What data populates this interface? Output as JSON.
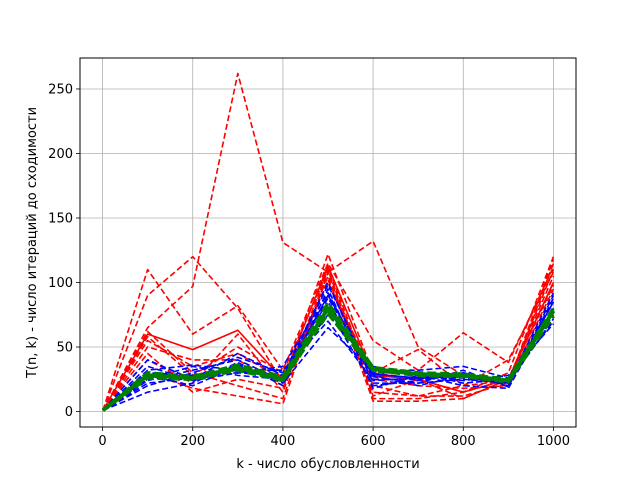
{
  "chart_data": {
    "type": "line",
    "title": "",
    "xlabel": "k - число обусловленности",
    "ylabel": "T(n, k) - число итераций до сходимости",
    "xlim": [
      -50,
      1050
    ],
    "ylim": [
      -12,
      274
    ],
    "xticks": [
      0,
      200,
      400,
      600,
      800,
      1000
    ],
    "yticks": [
      0,
      50,
      100,
      150,
      200,
      250
    ],
    "grid": true,
    "legend": "none",
    "x": [
      1,
      100,
      200,
      300,
      400,
      500,
      600,
      700,
      800,
      900,
      1000
    ],
    "colors": {
      "red": "#ff0000",
      "blue": "#0000ff",
      "green": "#008000",
      "grid": "#b0b0b0",
      "axis": "#000000"
    },
    "series": [
      {
        "color": "red",
        "style": "dashed",
        "values": [
          1,
          65,
          97,
          262,
          131,
          108,
          132,
          50,
          28,
          22,
          118
        ]
      },
      {
        "color": "red",
        "style": "dashed",
        "values": [
          1,
          110,
          60,
          82,
          32,
          115,
          55,
          32,
          61,
          38,
          112
        ]
      },
      {
        "color": "red",
        "style": "dashed",
        "values": [
          1,
          90,
          120,
          80,
          22,
          122,
          30,
          48,
          20,
          40,
          108
        ]
      },
      {
        "color": "red",
        "style": "dashed",
        "values": [
          1,
          62,
          30,
          20,
          10,
          110,
          12,
          25,
          10,
          25,
          105
        ]
      },
      {
        "color": "red",
        "style": "dashed",
        "values": [
          1,
          50,
          40,
          40,
          20,
          105,
          8,
          8,
          10,
          25,
          100
        ]
      },
      {
        "color": "red",
        "style": "dashed",
        "values": [
          1,
          30,
          18,
          12,
          6,
          108,
          10,
          10,
          15,
          25,
          98
        ]
      },
      {
        "color": "red",
        "style": "dashed",
        "values": [
          1,
          40,
          22,
          60,
          15,
          112,
          20,
          12,
          12,
          22,
          95
        ]
      },
      {
        "color": "red",
        "style": "dashed",
        "values": [
          1,
          58,
          28,
          50,
          30,
          110,
          15,
          12,
          20,
          24,
          110
        ]
      },
      {
        "color": "red",
        "style": "dashed",
        "values": [
          1,
          45,
          15,
          25,
          18,
          102,
          25,
          20,
          18,
          20,
          115
        ]
      },
      {
        "color": "red",
        "style": "dashed",
        "values": [
          1,
          55,
          35,
          45,
          25,
          100,
          30,
          25,
          15,
          30,
          120
        ]
      },
      {
        "color": "red",
        "style": "solid",
        "values": [
          1,
          60,
          48,
          63,
          25,
          113,
          28,
          25,
          15,
          25,
          100
        ]
      },
      {
        "color": "blue",
        "style": "dashed",
        "values": [
          1,
          40,
          25,
          45,
          28,
          100,
          22,
          22,
          25,
          22,
          85
        ]
      },
      {
        "color": "blue",
        "style": "dashed",
        "values": [
          1,
          15,
          22,
          38,
          20,
          95,
          18,
          28,
          20,
          18,
          80
        ]
      },
      {
        "color": "blue",
        "style": "dashed",
        "values": [
          1,
          30,
          28,
          30,
          35,
          92,
          25,
          25,
          30,
          20,
          90
        ]
      },
      {
        "color": "blue",
        "style": "dashed",
        "values": [
          1,
          25,
          35,
          28,
          25,
          88,
          30,
          30,
          22,
          25,
          75
        ]
      },
      {
        "color": "blue",
        "style": "dashed",
        "values": [
          1,
          20,
          30,
          42,
          30,
          85,
          28,
          20,
          28,
          24,
          70
        ]
      },
      {
        "color": "blue",
        "style": "dashed",
        "values": [
          1,
          28,
          20,
          35,
          22,
          65,
          32,
          32,
          35,
          26,
          78
        ]
      },
      {
        "color": "blue",
        "style": "dashed",
        "values": [
          1,
          32,
          36,
          32,
          32,
          70,
          24,
          26,
          26,
          22,
          72
        ]
      },
      {
        "color": "blue",
        "style": "dashed",
        "values": [
          1,
          22,
          26,
          36,
          26,
          98,
          27,
          22,
          32,
          19,
          88
        ]
      },
      {
        "color": "blue",
        "style": "dashed",
        "values": [
          1,
          24,
          32,
          40,
          24,
          80,
          20,
          24,
          30,
          23,
          92
        ]
      },
      {
        "color": "blue",
        "style": "dashed",
        "values": [
          1,
          35,
          24,
          30,
          28,
          75,
          35,
          28,
          24,
          28,
          68
        ]
      },
      {
        "color": "blue",
        "style": "solid",
        "values": [
          1,
          27,
          28,
          32,
          26,
          90,
          29,
          26,
          27,
          23,
          85
        ]
      },
      {
        "color": "green",
        "style": "dashed",
        "values": [
          1,
          28,
          26,
          34,
          25,
          80,
          33,
          29,
          28,
          24,
          78
        ]
      },
      {
        "color": "green",
        "style": "dashed",
        "values": [
          1,
          26,
          25,
          32,
          24,
          76,
          32,
          28,
          27,
          23,
          74
        ]
      },
      {
        "color": "green",
        "style": "dashed",
        "values": [
          1,
          30,
          27,
          36,
          27,
          84,
          34,
          30,
          29,
          25,
          80
        ]
      },
      {
        "color": "green",
        "style": "solid",
        "values": [
          1,
          28,
          26,
          34,
          25,
          80,
          33,
          29,
          28,
          24,
          78
        ]
      }
    ]
  }
}
